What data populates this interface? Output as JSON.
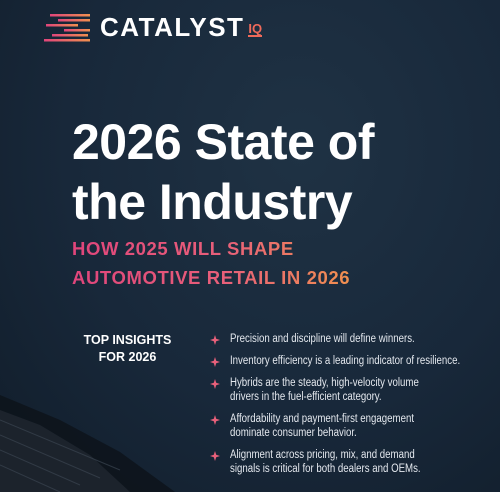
{
  "logo": {
    "name": "CATALYST",
    "suffix": "IQ"
  },
  "title": {
    "lines": [
      "2026 State of",
      "the Industry"
    ]
  },
  "subtitle": {
    "lines": [
      "HOW 2025 WILL SHAPE",
      "AUTOMOTIVE RETAIL IN 2026"
    ]
  },
  "insights_label": {
    "lines": [
      "TOP INSIGHTS",
      "FOR 2026"
    ]
  },
  "insights": [
    [
      "Precision and discipline will define winners."
    ],
    [
      "Inventory efficiency is a leading indicator of resilience."
    ],
    [
      "Hybrids are the steady, high-velocity volume",
      "drivers in the fuel-efficient category."
    ],
    [
      "Affordability and payment-first engagement",
      "dominate consumer behavior."
    ],
    [
      "Alignment across pricing, mix, and demand",
      "signals is critical for both dealers and OEMs."
    ]
  ]
}
